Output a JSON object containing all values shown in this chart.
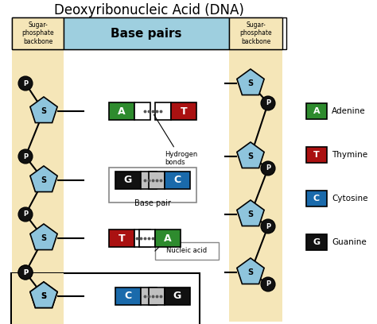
{
  "title": "Deoxyribonucleic Acid (DNA)",
  "title_fontsize": 12,
  "background_color": "#ffffff",
  "yellow_bg": "#f5e6b8",
  "light_blue_bg": "#9ecfdf",
  "sugar_blue": "#8ec4dc",
  "adenine_color": "#2e8b2e",
  "thymine_color": "#aa1111",
  "cytosine_color": "#1a6aab",
  "guanine_color": "#111111",
  "phosphate_color": "#111111",
  "connector_gray": "#c0c0c0",
  "legend_labels": [
    "Adenine",
    "Thymine",
    "Cytosine",
    "Guanine"
  ],
  "legend_letters": [
    "A",
    "T",
    "C",
    "G"
  ],
  "legend_colors": [
    "#2e8b2e",
    "#aa1111",
    "#1a6aab",
    "#111111"
  ]
}
